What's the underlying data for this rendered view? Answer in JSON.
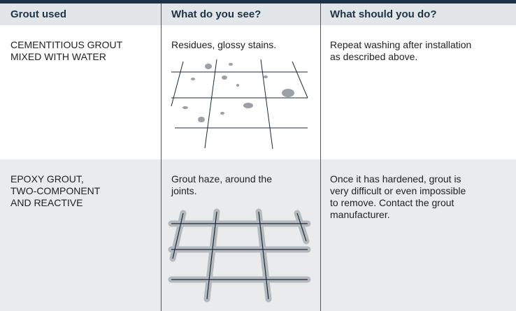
{
  "table": {
    "header": [
      "Grout used",
      "What do you see?",
      "What should you do?"
    ],
    "rows": [
      [
        [
          "CEMENTITIOUS GROUT",
          "MIXED WITH WATER"
        ],
        [
          "Residues, glossy stains."
        ],
        [
          "Repeat washing after installation",
          "as described above."
        ]
      ],
      [
        [
          "EPOXY GROUT,",
          "TWO-COMPONENT",
          "AND REACTIVE"
        ],
        [
          "Grout haze, around the",
          "joints."
        ],
        [
          "Once it has hardened, grout is",
          "very difficult or even impossible",
          "to remove. Contact the grout",
          "manufacturer."
        ]
      ]
    ]
  }
}
